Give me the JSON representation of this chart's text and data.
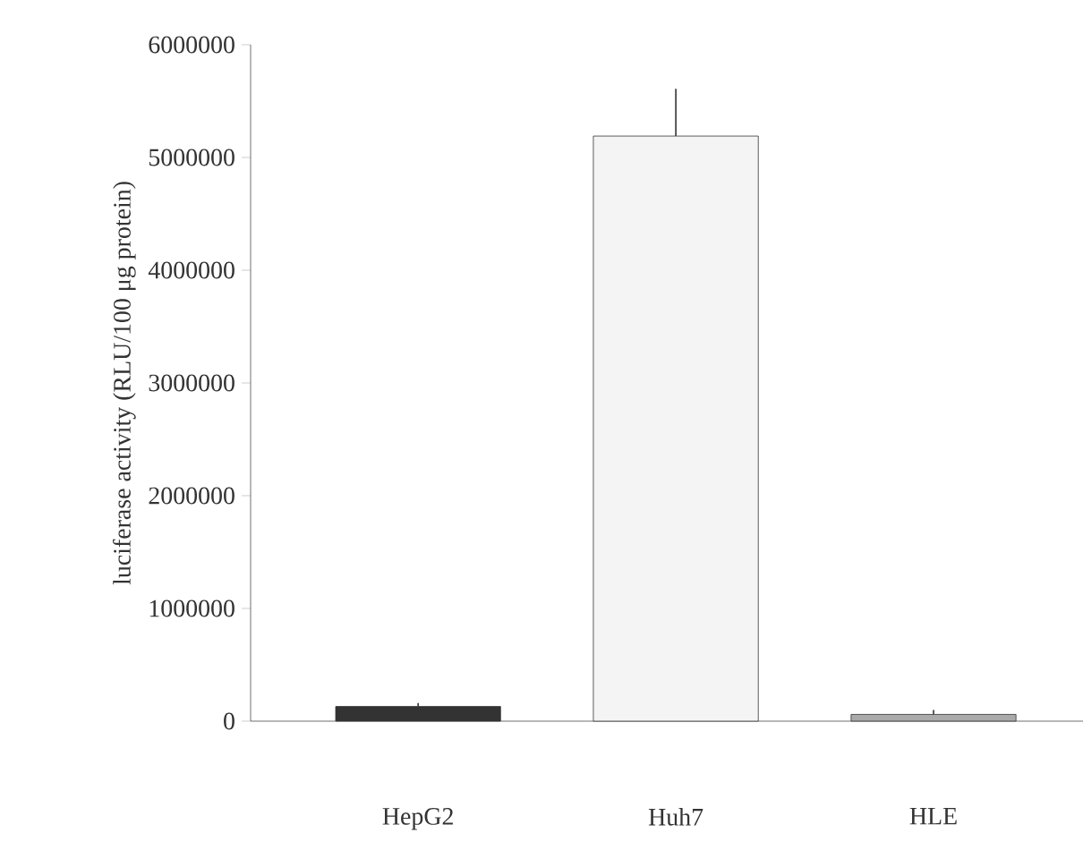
{
  "chart_data": {
    "type": "bar",
    "ylabel": "luciferase activity (RLU/100 μg protein)",
    "categories": [
      "HepG2",
      "Huh7",
      "HLE"
    ],
    "values": [
      130000,
      5190000,
      60000
    ],
    "colors": [
      "#333333",
      "#f4f4f4",
      "#aaaaaa"
    ],
    "errors": [
      [
        130000,
        160000
      ],
      [
        5190000,
        5610000
      ],
      [
        60000,
        100000
      ]
    ],
    "ylim": [
      0,
      6000000
    ],
    "yticks": [
      0,
      1000000,
      2000000,
      3000000,
      4000000,
      5000000,
      6000000
    ],
    "grid": false
  }
}
